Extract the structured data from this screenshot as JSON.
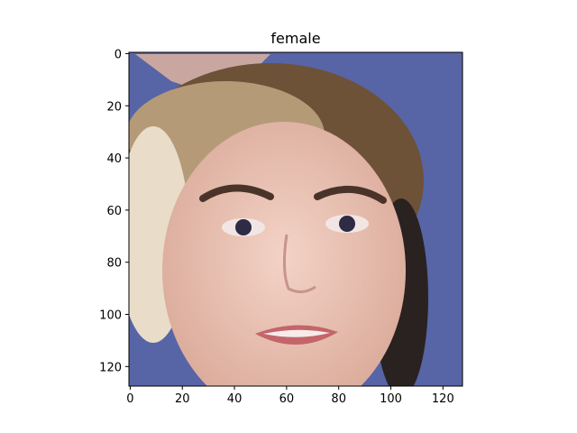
{
  "chart_data": {
    "type": "image",
    "title": "female",
    "xlim": [
      -0.5,
      127.5
    ],
    "ylim": [
      127.5,
      -0.5
    ],
    "xticks": [
      0,
      20,
      40,
      60,
      80,
      100,
      120
    ],
    "yticks": [
      0,
      20,
      40,
      60,
      80,
      100,
      120
    ]
  }
}
